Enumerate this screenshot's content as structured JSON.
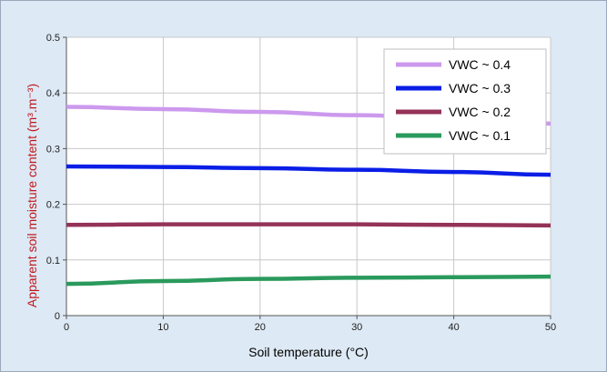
{
  "chart_data": {
    "type": "line",
    "xlabel": "Soil temperature (°C)",
    "ylabel": "Apparent soil moisture content (m³.m⁻³)",
    "xlim": [
      0,
      50
    ],
    "ylim": [
      0,
      0.5
    ],
    "x_ticks": [
      0,
      10,
      20,
      30,
      40,
      50
    ],
    "y_ticks": [
      0,
      0.1,
      0.2,
      0.3,
      0.4,
      0.5
    ],
    "x_tick_labels": [
      "0",
      "10",
      "20",
      "30",
      "40",
      "50"
    ],
    "y_tick_labels": [
      "0",
      "0.1",
      "0.2",
      "0.3",
      "0.4",
      "0.5"
    ],
    "grid": true,
    "legend_position": "top-right",
    "x": [
      0,
      10,
      20,
      30,
      40,
      50
    ],
    "series": [
      {
        "name": "VWC ~ 0.4",
        "color": "#cc99ee",
        "values": [
          0.375,
          0.371,
          0.366,
          0.36,
          0.353,
          0.345
        ]
      },
      {
        "name": "VWC ~ 0.3",
        "color": "#0a1ee6",
        "values": [
          0.268,
          0.267,
          0.265,
          0.262,
          0.258,
          0.253
        ]
      },
      {
        "name": "VWC ~ 0.2",
        "color": "#943258",
        "values": [
          0.163,
          0.164,
          0.164,
          0.164,
          0.163,
          0.162
        ]
      },
      {
        "name": "VWC ~ 0.1",
        "color": "#2a9a5c",
        "values": [
          0.057,
          0.062,
          0.066,
          0.068,
          0.069,
          0.07
        ]
      }
    ],
    "ylabel_color": "#c0181c",
    "xlabel_color": "#000000"
  }
}
